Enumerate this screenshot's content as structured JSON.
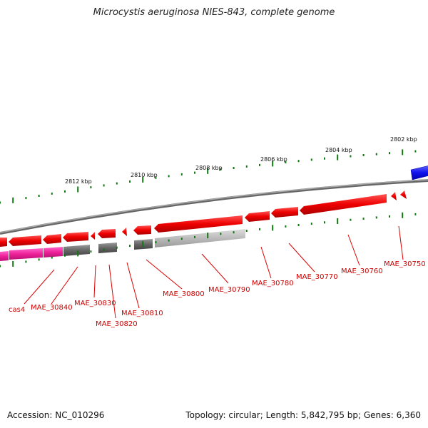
{
  "title": "Microcystis aeruginosa NIES-843, complete genome",
  "footer": {
    "accession": "Accession: NC_010296",
    "summary": "Topology: circular; Length: 5,842,795 bp; Genes: 6,360"
  },
  "colors": {
    "forward_gene": "#ee0000",
    "reverse_gene": "#ee0000",
    "cas_gene": "#ee22aa",
    "hypothetical": "#666666",
    "pseudogene": "#bbbbbb",
    "blue_feature": "#1111ee",
    "backbone": "#888888",
    "tick_major": "#117711",
    "label": "#cc0000"
  },
  "tick_labels": [
    "2812 kbp",
    "2810 kbp",
    "2808 kbp",
    "2806 kbp",
    "2804 kbp",
    "2802 kbp"
  ],
  "genes": [
    {
      "label": "cas4"
    },
    {
      "label": "MAE_30840"
    },
    {
      "label": "MAE_30830"
    },
    {
      "label": "MAE_30820"
    },
    {
      "label": "MAE_30810"
    },
    {
      "label": "MAE_30800"
    },
    {
      "label": "MAE_30790"
    },
    {
      "label": "MAE_30780"
    },
    {
      "label": "MAE_30770"
    },
    {
      "label": "MAE_30760"
    },
    {
      "label": "MAE_30750"
    }
  ]
}
